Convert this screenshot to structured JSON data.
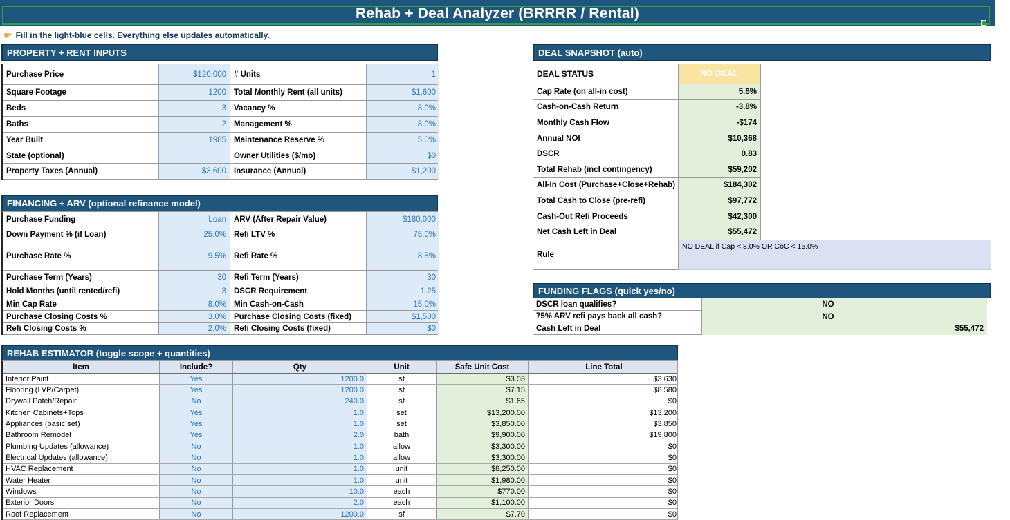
{
  "title": "Rehab + Deal Analyzer (BRRRR / Rental)",
  "instruction_icon": "☛",
  "instruction": "Fill in the light-blue cells. Everything else updates automatically.",
  "colors": {
    "banner-blue": "#1f567e",
    "selection-green": "#2f9e44",
    "input-fill": "#dcebf7",
    "input-text": "#2e75b6",
    "output-fill": "#e2efda",
    "status-fill": "#f9e4a1",
    "rule-fill": "#d9e1f2",
    "colhead-fill": "#dde5f3",
    "instruction-text": "#17375e"
  },
  "property_inputs": {
    "header": "PROPERTY + RENT INPUTS",
    "rows": [
      {
        "label1": "Purchase Price",
        "value1": "$120,000",
        "label2": "# Units",
        "value2": "1"
      },
      {
        "label1": "Square Footage",
        "value1": "1200",
        "label2": "Total Monthly Rent (all units)",
        "value2": "$1,600"
      },
      {
        "label1": "Beds",
        "value1": "3",
        "label2": "Vacancy %",
        "value2": "8.0%"
      },
      {
        "label1": "Baths",
        "value1": "2",
        "label2": "Management %",
        "value2": "8.0%"
      },
      {
        "label1": "Year Built",
        "value1": "1985",
        "label2": "Maintenance Reserve %",
        "value2": "5.0%"
      },
      {
        "label1": "State (optional)",
        "value1": "",
        "label2": "Owner Utilities ($/mo)",
        "value2": "$0"
      },
      {
        "label1": "Property Taxes (Annual)",
        "value1": "$3,600",
        "label2": "Insurance (Annual)",
        "value2": "$1,200"
      }
    ]
  },
  "financing": {
    "header": "FINANCING + ARV (optional refinance model)",
    "rows": [
      {
        "label1": "Purchase Funding",
        "value1": "Loan",
        "label2": "ARV (After Repair Value)",
        "value2": "$180,000"
      },
      {
        "label1": "Down Payment % (if Loan)",
        "value1": "25.0%",
        "label2": "Refi LTV %",
        "value2": "75.0%"
      },
      {
        "label1": "Purchase Rate %",
        "value1": "9.5%",
        "label2": "Refi Rate %",
        "value2": "8.5%"
      },
      {
        "label1": "Purchase Term (Years)",
        "value1": "30",
        "label2": "Refi Term (Years)",
        "value2": "30"
      },
      {
        "label1": "Hold Months (until rented/refi)",
        "value1": "3",
        "label2": "DSCR Requirement",
        "value2": "1.25"
      },
      {
        "label1": "Min Cap Rate",
        "value1": "8.0%",
        "label2": "Min Cash-on-Cash",
        "value2": "15.0%"
      },
      {
        "label1": "Purchase Closing Costs %",
        "value1": "3.0%",
        "label2": "Purchase Closing Costs (fixed)",
        "value2": "$1,500"
      },
      {
        "label1": "Refi Closing Costs %",
        "value1": "2.0%",
        "label2": "Refi Closing Costs (fixed)",
        "value2": "$0"
      }
    ]
  },
  "deal_snapshot": {
    "header": "DEAL SNAPSHOT (auto)",
    "status_label": "DEAL STATUS",
    "status_value": "NO DEAL",
    "rows": [
      {
        "label": "Cap Rate (on all-in cost)",
        "value": "5.6%"
      },
      {
        "label": "Cash-on-Cash Return",
        "value": "-3.8%"
      },
      {
        "label": "Monthly Cash Flow",
        "value": "-$174"
      },
      {
        "label": "Annual NOI",
        "value": "$10,368"
      },
      {
        "label": "DSCR",
        "value": "0.83"
      },
      {
        "label": "Total Rehab (incl contingency)",
        "value": "$59,202"
      },
      {
        "label": "All-In Cost (Purchase+Close+Rehab)",
        "value": "$184,302"
      },
      {
        "label": "Total Cash to Close (pre-refi)",
        "value": "$97,772"
      },
      {
        "label": "Cash-Out Refi Proceeds",
        "value": "$42,300"
      },
      {
        "label": "Net Cash Left in Deal",
        "value": "$55,472"
      }
    ],
    "rule_label": "Rule",
    "rule_value": "NO DEAL if Cap < 8.0% OR CoC < 15.0%"
  },
  "funding_flags": {
    "header": "FUNDING FLAGS (quick yes/no)",
    "rows": [
      {
        "label": "DSCR loan qualifies?",
        "value": "NO",
        "align": "center"
      },
      {
        "label": "75% ARV refi pays back all cash?",
        "value": "NO",
        "align": "center"
      },
      {
        "label": "Cash Left in Deal",
        "value": "$55,472",
        "align": "right"
      }
    ]
  },
  "rehab": {
    "header": "REHAB ESTIMATOR (toggle scope + quantities)",
    "columns": [
      "Item",
      "Include?",
      "Qty",
      "Unit",
      "Safe Unit Cost",
      "Line Total"
    ],
    "rows": [
      [
        "Interior Paint",
        "Yes",
        "1200.0",
        "sf",
        "$3.03",
        "$3,630"
      ],
      [
        "Flooring (LVP/Carpet)",
        "Yes",
        "1200.0",
        "sf",
        "$7.15",
        "$8,580"
      ],
      [
        "Drywall Patch/Repair",
        "No",
        "240.0",
        "sf",
        "$1.65",
        "$0"
      ],
      [
        "Kitchen Cabinets+Tops",
        "Yes",
        "1.0",
        "set",
        "$13,200.00",
        "$13,200"
      ],
      [
        "Appliances (basic set)",
        "Yes",
        "1.0",
        "set",
        "$3,850.00",
        "$3,850"
      ],
      [
        "Bathroom Remodel",
        "Yes",
        "2.0",
        "bath",
        "$9,900.00",
        "$19,800"
      ],
      [
        "Plumbing Updates (allowance)",
        "No",
        "1.0",
        "allow",
        "$3,300.00",
        "$0"
      ],
      [
        "Electrical Updates (allowance)",
        "No",
        "1.0",
        "allow",
        "$3,300.00",
        "$0"
      ],
      [
        "HVAC Replacement",
        "No",
        "1.0",
        "unit",
        "$8,250.00",
        "$0"
      ],
      [
        "Water Heater",
        "No",
        "1.0",
        "unit",
        "$1,980.00",
        "$0"
      ],
      [
        "Windows",
        "No",
        "10.0",
        "each",
        "$770.00",
        "$0"
      ],
      [
        "Exterior Doors",
        "No",
        "2.0",
        "each",
        "$1,100.00",
        "$0"
      ],
      [
        "Roof Replacement",
        "No",
        "1200.0",
        "sf",
        "$7.70",
        "$0"
      ]
    ]
  }
}
